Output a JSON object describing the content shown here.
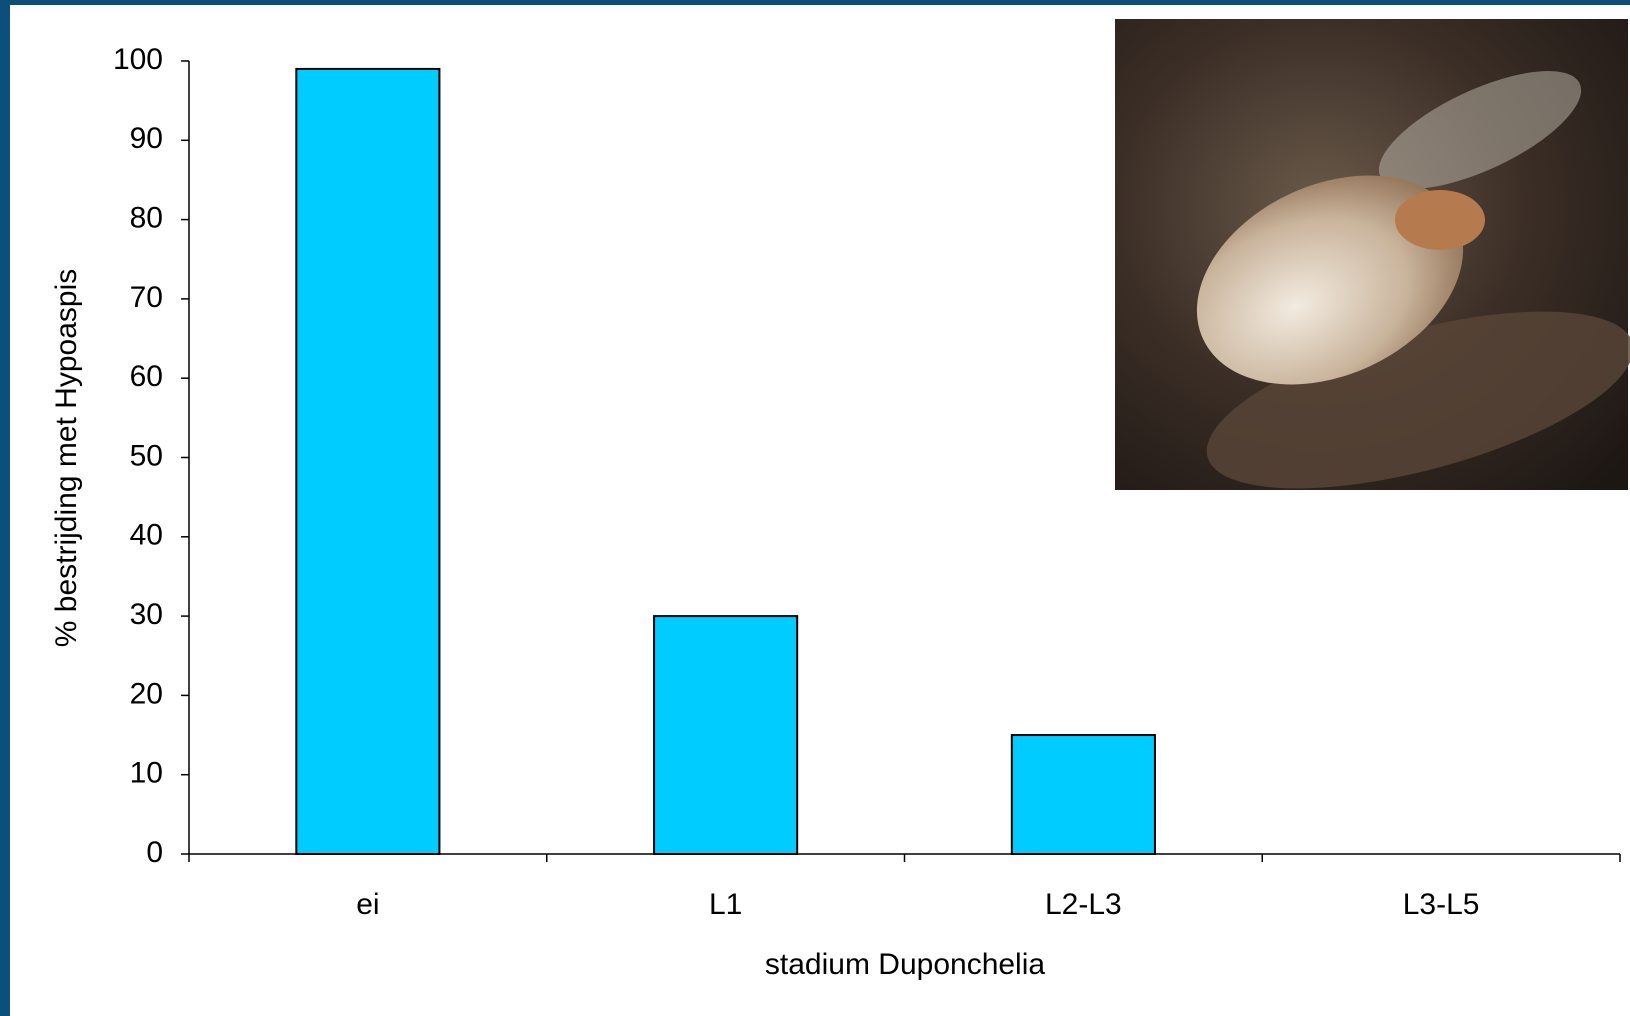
{
  "chart_data": {
    "type": "bar",
    "categories": [
      "ei",
      "L1",
      "L2-L3",
      "L3-L5"
    ],
    "values": [
      99,
      30,
      15,
      0
    ],
    "color": "#00ccff",
    "x_label": "stadium Duponchelia",
    "y_label": "% bestrijding met Hypoaspis",
    "ylim": [
      0,
      100
    ],
    "yticks": [
      0,
      10,
      20,
      30,
      40,
      50,
      60,
      70,
      80,
      90,
      100
    ],
    "grid": false
  }
}
